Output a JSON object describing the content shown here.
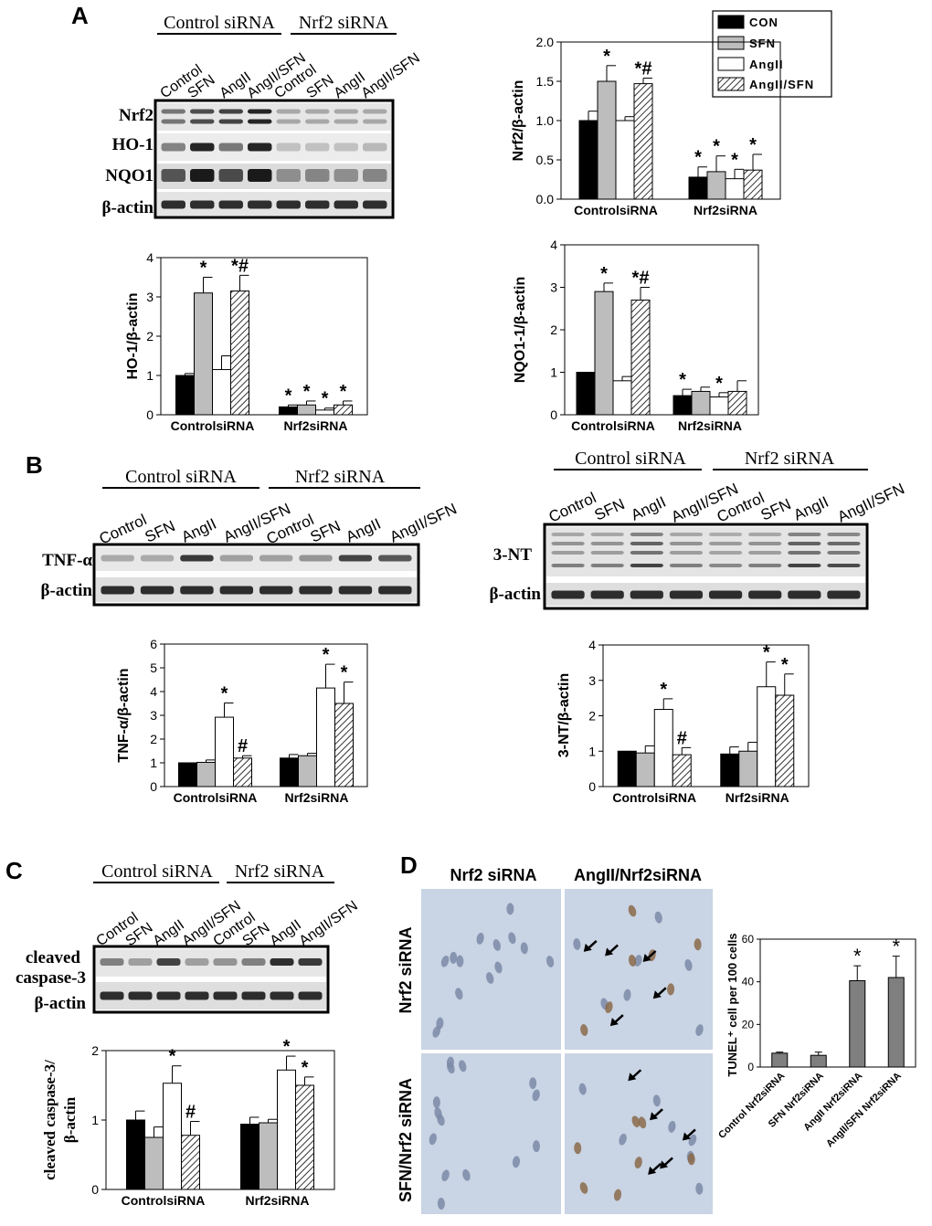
{
  "panel_letters": [
    "A",
    "B",
    "C",
    "D"
  ],
  "lane_labels": [
    "Control",
    "SFN",
    "AngII",
    "AngII/SFN",
    "Control",
    "SFN",
    "AngII",
    "AngII/SFN"
  ],
  "group_labels": [
    "Control siRNA",
    "Nrf2 siRNA"
  ],
  "legend": {
    "entries": [
      {
        "label": "CON",
        "pattern": "black"
      },
      {
        "label": "SFN",
        "pattern": "grey"
      },
      {
        "label": "AngII",
        "pattern": "white"
      },
      {
        "label": "AngII/SFN",
        "pattern": "hatch"
      }
    ]
  },
  "blots": {
    "A": {
      "rows": [
        "Nrf2",
        "HO-1",
        "NQO1",
        "β-actin"
      ]
    },
    "B_left": {
      "rows": [
        "TNF-α",
        "β-actin"
      ]
    },
    "B_right": {
      "rows": [
        "3-NT",
        "β-actin"
      ]
    },
    "C": {
      "rows": [
        "cleaved caspase-3",
        "β-actin"
      ]
    }
  },
  "micrographs": {
    "column_headers": [
      "Nrf2 siRNA",
      "AngII/Nrf2siRNA"
    ],
    "row_headers": [
      "Nrf2 siRNA",
      "SFN/Nrf2 siRNA"
    ]
  },
  "colors": {
    "black": "#000000",
    "grey": "#bdbdbd",
    "white": "#ffffff",
    "d_bar": "#7f7f7f",
    "micrograph_bg": "#c9d4e4"
  },
  "chart_data": [
    {
      "id": "nrf2",
      "type": "bar",
      "ylabel": "Nrf2/β-actin",
      "categories": [
        "ControlsiRNA",
        "Nrf2siRNA"
      ],
      "ylim": [
        0,
        2.0
      ],
      "yticks": [
        "0.0",
        "0.5",
        "1.0",
        "1.5",
        "2.0"
      ],
      "values": [
        [
          1.0,
          1.5,
          1.0,
          1.47
        ],
        [
          0.28,
          0.35,
          0.26,
          0.37
        ]
      ],
      "errors": [
        [
          0.12,
          0.2,
          0.05,
          0.07
        ],
        [
          0.13,
          0.2,
          0.12,
          0.2
        ]
      ],
      "marks": [
        [
          "",
          "*",
          "",
          "*#"
        ],
        [
          "*",
          "*",
          "*",
          "*"
        ]
      ]
    },
    {
      "id": "ho1",
      "type": "bar",
      "ylabel": "HO-1/β-actin",
      "categories": [
        "ControlsiRNA",
        "Nrf2siRNA"
      ],
      "ylim": [
        0,
        4
      ],
      "yticks": [
        "0",
        "1",
        "2",
        "3",
        "4"
      ],
      "values": [
        [
          1.0,
          3.1,
          1.15,
          3.15
        ],
        [
          0.2,
          0.25,
          0.12,
          0.25
        ]
      ],
      "errors": [
        [
          0.05,
          0.4,
          0.35,
          0.4
        ],
        [
          0.05,
          0.1,
          0.05,
          0.1
        ]
      ],
      "marks": [
        [
          "",
          "*",
          "",
          "*#"
        ],
        [
          "*",
          "*",
          "*",
          "*"
        ]
      ]
    },
    {
      "id": "nqo1",
      "type": "bar",
      "ylabel": "NQO1-1/β-actin",
      "categories": [
        "ControlsiRNA",
        "Nrf2siRNA"
      ],
      "ylim": [
        0,
        4
      ],
      "yticks": [
        "0",
        "1",
        "2",
        "3",
        "4"
      ],
      "values": [
        [
          1.0,
          2.9,
          0.8,
          2.7
        ],
        [
          0.45,
          0.55,
          0.42,
          0.55
        ]
      ],
      "errors": [
        [
          0.0,
          0.2,
          0.1,
          0.3
        ],
        [
          0.15,
          0.1,
          0.1,
          0.25
        ]
      ],
      "marks": [
        [
          "",
          "*",
          "",
          "*#"
        ],
        [
          "*",
          "",
          "*",
          ""
        ]
      ]
    },
    {
      "id": "tnf",
      "type": "bar",
      "ylabel": "TNF-α/β-actin",
      "categories": [
        "ControlsiRNA",
        "Nrf2siRNA"
      ],
      "ylim": [
        0,
        6
      ],
      "yticks": [
        "0",
        "1",
        "2",
        "3",
        "4",
        "5",
        "6"
      ],
      "values": [
        [
          1.0,
          1.02,
          2.92,
          1.2
        ],
        [
          1.2,
          1.3,
          4.15,
          3.5
        ]
      ],
      "errors": [
        [
          0.0,
          0.1,
          0.6,
          0.1
        ],
        [
          0.15,
          0.1,
          1.0,
          0.9
        ]
      ],
      "marks": [
        [
          "",
          "",
          "*",
          "#"
        ],
        [
          "",
          "",
          "*",
          "*"
        ]
      ]
    },
    {
      "id": "nt3",
      "type": "bar",
      "ylabel": "3-NT/β-actin",
      "categories": [
        "ControlsiRNA",
        "Nrf2siRNA"
      ],
      "ylim": [
        0,
        4
      ],
      "yticks": [
        "0",
        "1",
        "2",
        "3",
        "4"
      ],
      "values": [
        [
          1.0,
          0.95,
          2.18,
          0.9
        ],
        [
          0.92,
          1.0,
          2.82,
          2.58
        ]
      ],
      "errors": [
        [
          0.0,
          0.2,
          0.3,
          0.2
        ],
        [
          0.2,
          0.25,
          0.7,
          0.6
        ]
      ],
      "marks": [
        [
          "",
          "",
          "*",
          "#"
        ],
        [
          "",
          "",
          "*",
          "*"
        ]
      ]
    },
    {
      "id": "casp",
      "type": "bar",
      "ylabel_lines": [
        "cleaved caspase-3/",
        "β-actin"
      ],
      "categories": [
        "ControlsiRNA",
        "Nrf2siRNA"
      ],
      "ylim": [
        0,
        2
      ],
      "yticks": [
        "0",
        "1",
        "2"
      ],
      "values": [
        [
          1.0,
          0.75,
          1.53,
          0.78
        ],
        [
          0.94,
          0.96,
          1.72,
          1.5
        ]
      ],
      "errors": [
        [
          0.13,
          0.15,
          0.25,
          0.2
        ],
        [
          0.1,
          0.05,
          0.2,
          0.12
        ]
      ],
      "marks": [
        [
          "",
          "",
          "*",
          "#"
        ],
        [
          "",
          "",
          "*",
          "*"
        ]
      ]
    },
    {
      "id": "tunel",
      "type": "bar",
      "ylabel": "TUNEL⁺ cell per 100 cells",
      "categories": [
        "Control Nrf2siRNA",
        "SFN Nrf2siRNA",
        "AngII Nrf2siRNA",
        "AngII/SFN Nrf2siRNA"
      ],
      "ylim": [
        0,
        60
      ],
      "yticks": [
        "0",
        "20",
        "40",
        "60"
      ],
      "values": [
        6.5,
        5.5,
        40.5,
        42
      ],
      "errors": [
        0.5,
        1.5,
        7,
        10
      ],
      "marks": [
        "",
        "",
        "*",
        "*"
      ]
    }
  ]
}
